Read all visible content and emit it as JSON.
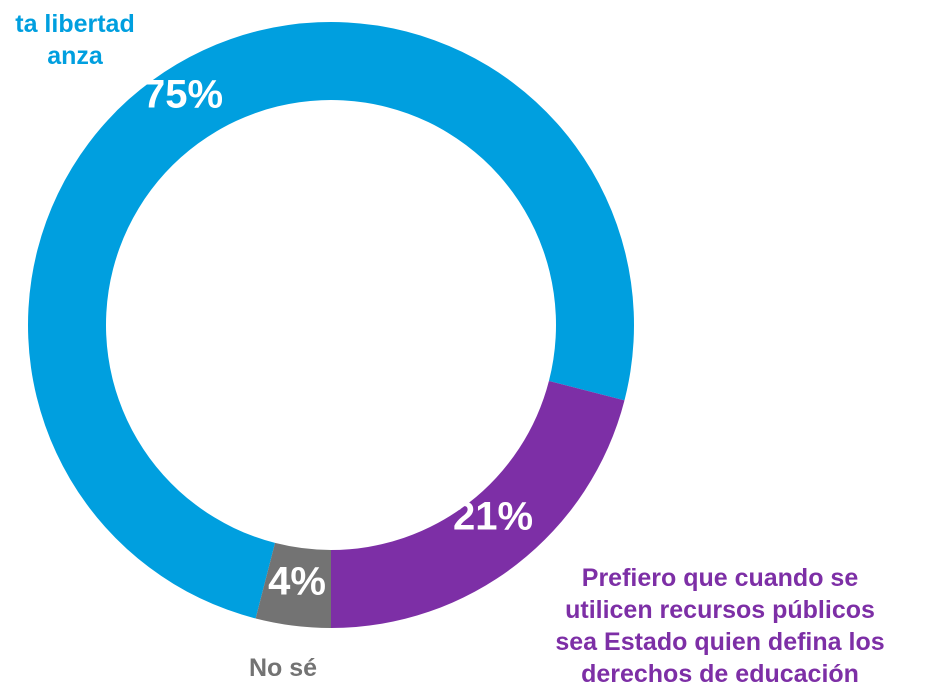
{
  "chart_data": {
    "type": "donut",
    "categories": [
      "ducar a sus\nta libertad\nanza",
      "Prefiero que cuando se\nutilicen recursos públicos\nsea Estado quien defina los\nderechos de educación",
      "No sé"
    ],
    "values": [
      75,
      21,
      4
    ],
    "value_labels": [
      "75%",
      "21%",
      "4%"
    ],
    "colors": [
      "#009fdf",
      "#7d2fa6",
      "#737373"
    ]
  }
}
